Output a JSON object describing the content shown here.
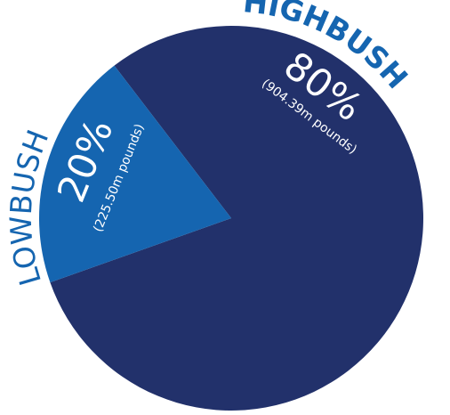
{
  "chart_data": {
    "type": "pie",
    "title": "",
    "slices": [
      {
        "category": "HIGHBUSH",
        "percent": 80,
        "percent_label": "80%",
        "value_millions_pounds": 904.39,
        "value_label": "(904.39m pounds)",
        "color": "#22316b"
      },
      {
        "category": "LOWBUSH",
        "percent": 20,
        "percent_label": "20%",
        "value_millions_pounds": 225.5,
        "value_label": "(225.50m pounds)",
        "color": "#1565b0"
      }
    ],
    "category_label_color": "#1565b0",
    "legend": "none"
  }
}
